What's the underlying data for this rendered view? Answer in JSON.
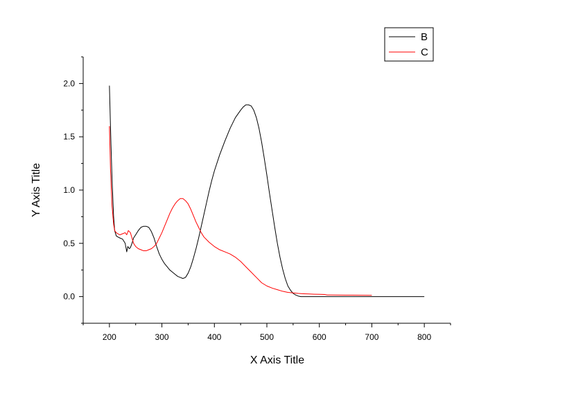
{
  "chart_data": {
    "type": "line",
    "xlabel": "X Axis Title",
    "ylabel": "Y Axis Title",
    "xlim": [
      150,
      850
    ],
    "ylim": [
      -0.25,
      2.25
    ],
    "xticks": [
      200,
      300,
      400,
      500,
      600,
      700,
      800
    ],
    "xtick_labels": [
      "200",
      "300",
      "400",
      "500",
      "600",
      "700",
      "800"
    ],
    "yticks": [
      0.0,
      0.5,
      1.0,
      1.5,
      2.0
    ],
    "ytick_labels": [
      "0.0",
      "0.5",
      "1.0",
      "1.5",
      "2.0"
    ],
    "grid": false,
    "legend_position": "top-right",
    "series": [
      {
        "name": "B",
        "color": "#000000",
        "x": [
          200,
          202,
          205,
          208,
          210,
          213,
          216,
          220,
          225,
          230,
          233,
          235,
          238,
          240,
          243,
          246,
          250,
          255,
          260,
          265,
          270,
          275,
          280,
          285,
          290,
          295,
          300,
          305,
          310,
          315,
          320,
          325,
          330,
          335,
          340,
          345,
          350,
          355,
          360,
          365,
          370,
          375,
          380,
          385,
          390,
          395,
          400,
          410,
          420,
          430,
          440,
          450,
          455,
          460,
          465,
          470,
          475,
          480,
          485,
          490,
          495,
          500,
          505,
          510,
          515,
          520,
          525,
          530,
          535,
          540,
          545,
          550,
          555,
          560,
          565,
          570,
          575,
          580,
          600,
          650,
          700,
          750,
          790,
          800
        ],
        "values": [
          1.98,
          1.6,
          1.1,
          0.75,
          0.62,
          0.57,
          0.56,
          0.55,
          0.54,
          0.5,
          0.42,
          0.47,
          0.45,
          0.46,
          0.5,
          0.55,
          0.58,
          0.62,
          0.65,
          0.66,
          0.66,
          0.65,
          0.61,
          0.55,
          0.47,
          0.4,
          0.35,
          0.31,
          0.28,
          0.25,
          0.23,
          0.21,
          0.19,
          0.18,
          0.17,
          0.18,
          0.22,
          0.28,
          0.36,
          0.45,
          0.55,
          0.66,
          0.77,
          0.88,
          0.99,
          1.09,
          1.18,
          1.33,
          1.46,
          1.58,
          1.68,
          1.75,
          1.78,
          1.8,
          1.8,
          1.79,
          1.75,
          1.68,
          1.58,
          1.45,
          1.3,
          1.14,
          0.97,
          0.81,
          0.65,
          0.5,
          0.37,
          0.26,
          0.17,
          0.1,
          0.06,
          0.03,
          0.015,
          0.005,
          0.0,
          0.0,
          0.0,
          0.0,
          0.0,
          0.0,
          0.0,
          0.0,
          0.0,
          0.0
        ]
      },
      {
        "name": "C",
        "color": "#ff0000",
        "x": [
          200,
          202,
          205,
          208,
          210,
          213,
          216,
          220,
          225,
          230,
          233,
          236,
          240,
          243,
          246,
          250,
          255,
          260,
          265,
          270,
          275,
          280,
          285,
          290,
          295,
          300,
          305,
          310,
          315,
          320,
          325,
          330,
          335,
          340,
          345,
          350,
          355,
          360,
          365,
          370,
          375,
          380,
          390,
          400,
          410,
          420,
          430,
          440,
          450,
          460,
          470,
          480,
          490,
          500,
          510,
          520,
          530,
          540,
          550,
          560,
          570,
          580,
          590,
          600,
          610,
          615,
          620,
          650,
          680,
          700
        ],
        "values": [
          1.6,
          1.2,
          0.85,
          0.68,
          0.62,
          0.6,
          0.59,
          0.58,
          0.59,
          0.6,
          0.58,
          0.62,
          0.6,
          0.55,
          0.5,
          0.47,
          0.45,
          0.44,
          0.43,
          0.43,
          0.44,
          0.45,
          0.47,
          0.5,
          0.55,
          0.6,
          0.66,
          0.72,
          0.78,
          0.83,
          0.87,
          0.9,
          0.92,
          0.92,
          0.9,
          0.87,
          0.82,
          0.76,
          0.7,
          0.65,
          0.6,
          0.56,
          0.51,
          0.47,
          0.44,
          0.42,
          0.4,
          0.37,
          0.33,
          0.28,
          0.23,
          0.18,
          0.13,
          0.1,
          0.08,
          0.065,
          0.05,
          0.04,
          0.035,
          0.03,
          0.027,
          0.025,
          0.023,
          0.022,
          0.02,
          0.015,
          0.015,
          0.014,
          0.013,
          0.012
        ]
      }
    ]
  }
}
